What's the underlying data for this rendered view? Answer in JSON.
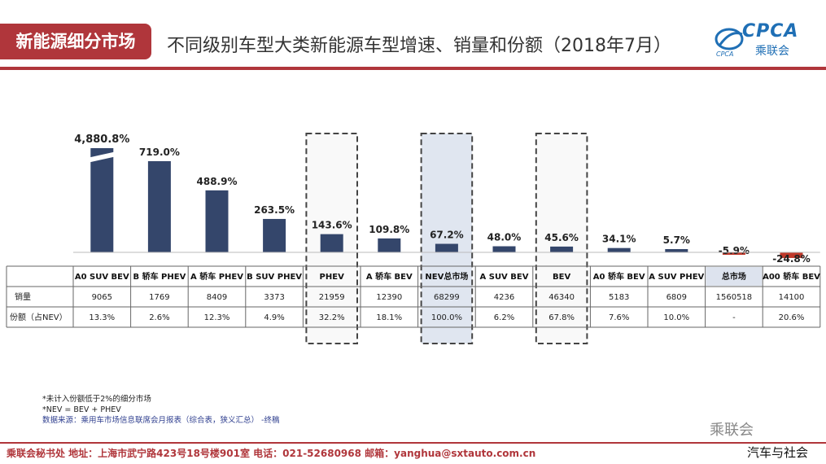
{
  "header": {
    "tag": "新能源细分市场",
    "title": "不同级别车型大类新能源车型增速、销量和份额（2018年7月）",
    "logo_main": "CPCA",
    "logo_sub": "乘联会",
    "logo_small": "CPCA"
  },
  "chart_data": {
    "type": "bar",
    "categories": [
      "A0 SUV BEV",
      "B 轿车 PHEV",
      "A 轿车 PHEV",
      "B SUV PHEV",
      "PHEV",
      "A 轿车 BEV",
      "NEV总市场",
      "A SUV BEV",
      "BEV",
      "A0 轿车 BEV",
      "A SUV PHEV",
      "总市场",
      "A00 轿车 BEV"
    ],
    "series": [
      {
        "values": [
          4880.8,
          719.0,
          488.9,
          263.5,
          143.6,
          109.8,
          67.2,
          48.0,
          45.6,
          34.1,
          5.7,
          -5.9,
          -24.8
        ]
      }
    ],
    "value_labels": [
      "4,880.8%",
      "719.0%",
      "488.9%",
      "263.5%",
      "143.6%",
      "109.8%",
      "67.2%",
      "48.0%",
      "45.6%",
      "34.1%",
      "5.7%",
      "-5.9%",
      "-24.8%"
    ],
    "highlighted": [
      "PHEV",
      "NEV总市场",
      "BEV"
    ],
    "axis_break_on_first_bar": true,
    "bar_color": "#34466b",
    "negative_color": "#c0392b",
    "table": {
      "row_labels": [
        "销量",
        "份额（占NEV）"
      ],
      "sales": [
        "9065",
        "1769",
        "8409",
        "3373",
        "21959",
        "12390",
        "68299",
        "4236",
        "46340",
        "5183",
        "6809",
        "1560518",
        "14100"
      ],
      "share": [
        "13.3%",
        "2.6%",
        "12.3%",
        "4.9%",
        "32.2%",
        "18.1%",
        "100.0%",
        "6.2%",
        "67.8%",
        "7.6%",
        "10.0%",
        "-",
        "20.6%"
      ]
    }
  },
  "notes": {
    "line1": "*未计入份额低于2%的细分市场",
    "line2": "*NEV = BEV + PHEV",
    "line3": "数据来源：乘用车市场信息联席会月报表（综合表，狭义汇总）  -终稿"
  },
  "footer": {
    "text": "乘联会秘书处   地址：上海市武宁路423号18号楼901室  电话：021-52680968   邮箱：yanghua@sxtauto.com.cn"
  },
  "watermark": {
    "text": "乘联会",
    "text2": "汽车与社会"
  }
}
